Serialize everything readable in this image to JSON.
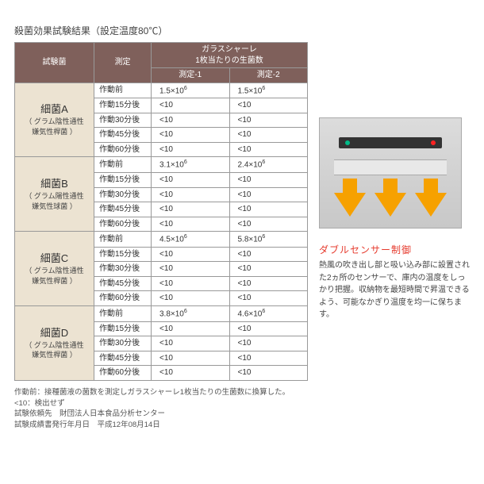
{
  "heading": "殺菌効果試験結果（設定温度80℃）",
  "table": {
    "head": {
      "bacteria": "試験菌",
      "measure": "測定",
      "dishHeader": "ガラスシャーレ\n1枚当たりの生菌数",
      "v1": "測定-1",
      "v2": "測定-2"
    },
    "groups": [
      {
        "name": "細菌A",
        "sub": "グラム陰性通性\n嫌気性桿菌",
        "rows": [
          {
            "m": "作動前",
            "v1": "1.5×10",
            "v1s": "6",
            "v2": "1.5×10",
            "v2s": "6"
          },
          {
            "m": "作動15分後",
            "v1": "<10",
            "v2": "<10"
          },
          {
            "m": "作動30分後",
            "v1": "<10",
            "v2": "<10"
          },
          {
            "m": "作動45分後",
            "v1": "<10",
            "v2": "<10"
          },
          {
            "m": "作動60分後",
            "v1": "<10",
            "v2": "<10"
          }
        ]
      },
      {
        "name": "細菌B",
        "sub": "グラム陽性通性\n嫌気性球菌",
        "rows": [
          {
            "m": "作動前",
            "v1": "3.1×10",
            "v1s": "6",
            "v2": "2.4×10",
            "v2s": "6"
          },
          {
            "m": "作動15分後",
            "v1": "<10",
            "v2": "<10"
          },
          {
            "m": "作動30分後",
            "v1": "<10",
            "v2": "<10"
          },
          {
            "m": "作動45分後",
            "v1": "<10",
            "v2": "<10"
          },
          {
            "m": "作動60分後",
            "v1": "<10",
            "v2": "<10"
          }
        ]
      },
      {
        "name": "細菌C",
        "sub": "グラム陰性通性\n嫌気性桿菌",
        "rows": [
          {
            "m": "作動前",
            "v1": "4.5×10",
            "v1s": "6",
            "v2": "5.8×10",
            "v2s": "6"
          },
          {
            "m": "作動15分後",
            "v1": "<10",
            "v2": "<10"
          },
          {
            "m": "作動30分後",
            "v1": "<10",
            "v2": "<10"
          },
          {
            "m": "作動45分後",
            "v1": "<10",
            "v2": "<10"
          },
          {
            "m": "作動60分後",
            "v1": "<10",
            "v2": "<10"
          }
        ]
      },
      {
        "name": "細菌D",
        "sub": "グラム陰性通性\n嫌気性桿菌",
        "rows": [
          {
            "m": "作動前",
            "v1": "3.8×10",
            "v1s": "6",
            "v2": "4.6×10",
            "v2s": "6"
          },
          {
            "m": "作動15分後",
            "v1": "<10",
            "v2": "<10"
          },
          {
            "m": "作動30分後",
            "v1": "<10",
            "v2": "<10"
          },
          {
            "m": "作動45分後",
            "v1": "<10",
            "v2": "<10"
          },
          {
            "m": "作動60分後",
            "v1": "<10",
            "v2": "<10"
          }
        ]
      }
    ]
  },
  "notes": [
    "作動前：接種菌液の菌数を測定しガラスシャーレ1枚当たりの生菌数に換算した。",
    "<10：検出せず",
    "試験依頼先　財団法人日本食品分析センター",
    "試験成績書発行年月日　平成12年08月14日"
  ],
  "feature": {
    "title": "ダブルセンサー制御",
    "desc": "熱風の吹き出し部と吸い込み部に設置された2ヵ所のセンサーで、庫内の温度をしっかり把握。収納物を最短時間で昇温できるよう、可能なかぎり温度を均一に保ちます。"
  },
  "colors": {
    "header_bg": "#7f605b",
    "header_fg": "#ffffff",
    "bacteria_bg": "#ece3d2",
    "border": "#999999",
    "arrow": "#f6a100",
    "feature_title": "#e63b2e"
  }
}
